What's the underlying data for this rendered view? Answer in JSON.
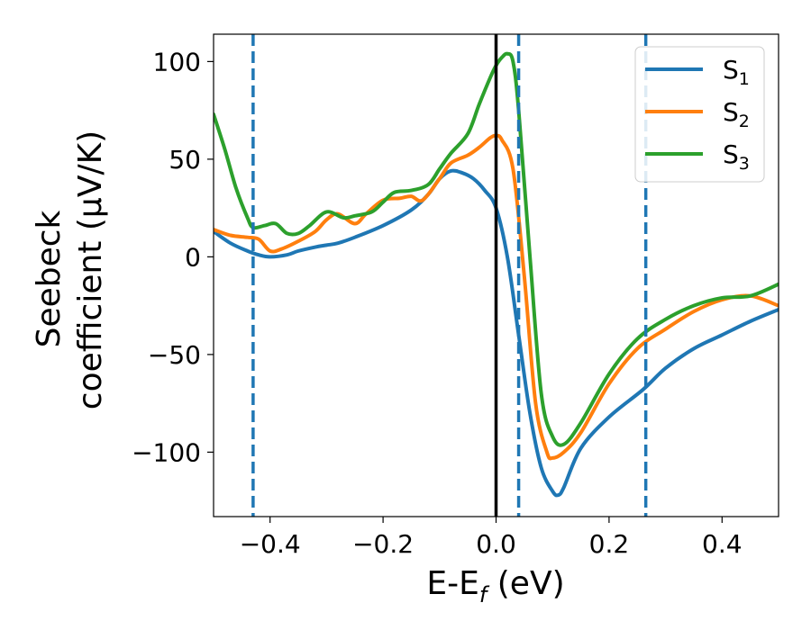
{
  "chart_data": {
    "type": "line",
    "xlabel_main": "E-E",
    "xlabel_sub": "f",
    "xlabel_unit": " (eV)",
    "ylabel_line1": "Seebeck",
    "ylabel_line2": "coefficient  (μV/K)",
    "xlim": [
      -0.5,
      0.5
    ],
    "ylim": [
      -133,
      114
    ],
    "xticks": [
      -0.4,
      -0.2,
      0.0,
      0.2,
      0.4
    ],
    "xtick_labels": [
      "−0.4",
      "−0.2",
      "0.0",
      "0.2",
      "0.4"
    ],
    "yticks": [
      -100,
      -50,
      0,
      50,
      100
    ],
    "ytick_labels": [
      "−100",
      "−50",
      "0",
      "50",
      "100"
    ],
    "grid": false,
    "legend_position": "top-right",
    "vertical_lines": [
      {
        "x": -0.43,
        "style": "dashed",
        "color": "#1f77b4"
      },
      {
        "x": 0.0,
        "style": "solid",
        "color": "#000000"
      },
      {
        "x": 0.04,
        "style": "dashed",
        "color": "#1f77b4"
      },
      {
        "x": 0.265,
        "style": "dashed",
        "color": "#1f77b4"
      }
    ],
    "series": [
      {
        "name": "S",
        "sub": "1",
        "color": "#1f77b4",
        "x": [
          -0.5,
          -0.47,
          -0.44,
          -0.42,
          -0.4,
          -0.37,
          -0.35,
          -0.32,
          -0.3,
          -0.28,
          -0.25,
          -0.2,
          -0.15,
          -0.12,
          -0.1,
          -0.08,
          -0.06,
          -0.04,
          -0.02,
          0.0,
          0.02,
          0.04,
          0.06,
          0.08,
          0.1,
          0.11,
          0.12,
          0.15,
          0.2,
          0.26,
          0.3,
          0.35,
          0.4,
          0.45,
          0.5
        ],
        "y": [
          13,
          7,
          3,
          1,
          0,
          1,
          3,
          5,
          6,
          7,
          10,
          16,
          24,
          32,
          40,
          44,
          43,
          40,
          34,
          25,
          0,
          -40,
          -80,
          -108,
          -120,
          -122,
          -118,
          -98,
          -82,
          -68,
          -57,
          -47,
          -40,
          -33,
          -27
        ]
      },
      {
        "name": "S",
        "sub": "2",
        "color": "#ff7f0e",
        "x": [
          -0.5,
          -0.47,
          -0.44,
          -0.42,
          -0.4,
          -0.38,
          -0.35,
          -0.32,
          -0.3,
          -0.28,
          -0.25,
          -0.23,
          -0.2,
          -0.17,
          -0.15,
          -0.13,
          -0.1,
          -0.08,
          -0.05,
          -0.03,
          -0.01,
          0.0,
          0.01,
          0.03,
          0.05,
          0.07,
          0.09,
          0.1,
          0.12,
          0.15,
          0.2,
          0.25,
          0.3,
          0.35,
          0.4,
          0.45,
          0.5
        ],
        "y": [
          14,
          11,
          10,
          9,
          3,
          4,
          8,
          13,
          19,
          22,
          17,
          22,
          29,
          30,
          31,
          29,
          40,
          48,
          52,
          56,
          61,
          62,
          60,
          45,
          -10,
          -75,
          -100,
          -103,
          -100,
          -90,
          -65,
          -47,
          -37,
          -28,
          -22,
          -20,
          -25
        ]
      },
      {
        "name": "S",
        "sub": "3",
        "color": "#2ca02c",
        "x": [
          -0.5,
          -0.48,
          -0.46,
          -0.44,
          -0.43,
          -0.41,
          -0.39,
          -0.37,
          -0.35,
          -0.33,
          -0.3,
          -0.27,
          -0.25,
          -0.22,
          -0.2,
          -0.18,
          -0.15,
          -0.12,
          -0.1,
          -0.08,
          -0.05,
          -0.03,
          -0.01,
          0.0,
          0.01,
          0.02,
          0.03,
          0.04,
          0.06,
          0.08,
          0.1,
          0.12,
          0.15,
          0.2,
          0.25,
          0.3,
          0.35,
          0.4,
          0.45,
          0.5
        ],
        "y": [
          73,
          55,
          35,
          20,
          15,
          16,
          17,
          12,
          12,
          16,
          23,
          20,
          21,
          23,
          28,
          33,
          34,
          37,
          45,
          53,
          63,
          78,
          92,
          98,
          102,
          104,
          100,
          75,
          0,
          -70,
          -92,
          -96,
          -85,
          -60,
          -42,
          -32,
          -25,
          -21,
          -20,
          -14
        ]
      }
    ]
  },
  "colors": {
    "s1": "#1f77b4",
    "s2": "#ff7f0e",
    "s3": "#2ca02c"
  }
}
